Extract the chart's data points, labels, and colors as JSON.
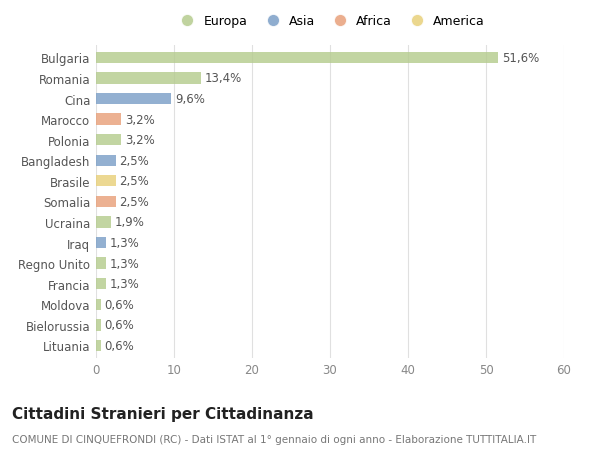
{
  "countries": [
    "Bulgaria",
    "Romania",
    "Cina",
    "Marocco",
    "Polonia",
    "Bangladesh",
    "Brasile",
    "Somalia",
    "Ucraina",
    "Iraq",
    "Regno Unito",
    "Francia",
    "Moldova",
    "Bielorussia",
    "Lituania"
  ],
  "values": [
    51.6,
    13.4,
    9.6,
    3.2,
    3.2,
    2.5,
    2.5,
    2.5,
    1.9,
    1.3,
    1.3,
    1.3,
    0.6,
    0.6,
    0.6
  ],
  "labels": [
    "51,6%",
    "13,4%",
    "9,6%",
    "3,2%",
    "3,2%",
    "2,5%",
    "2,5%",
    "2,5%",
    "1,9%",
    "1,3%",
    "1,3%",
    "1,3%",
    "0,6%",
    "0,6%",
    "0,6%"
  ],
  "continents": [
    "Europa",
    "Europa",
    "Asia",
    "Africa",
    "Europa",
    "Asia",
    "America",
    "Africa",
    "Europa",
    "Asia",
    "Europa",
    "Europa",
    "Europa",
    "Europa",
    "Europa"
  ],
  "colors": {
    "Europa": "#b5cc8e",
    "Asia": "#7b9fc7",
    "Africa": "#e8a07a",
    "America": "#e8d07a"
  },
  "xlim": [
    0,
    60
  ],
  "xticks": [
    0,
    10,
    20,
    30,
    40,
    50,
    60
  ],
  "title": "Cittadini Stranieri per Cittadinanza",
  "subtitle": "COMUNE DI CINQUEFRONDI (RC) - Dati ISTAT al 1° gennaio di ogni anno - Elaborazione TUTTITALIA.IT",
  "bg_color": "#ffffff",
  "grid_color": "#e0e0e0",
  "bar_height": 0.55,
  "label_fontsize": 8.5,
  "ytick_fontsize": 8.5,
  "xtick_fontsize": 8.5,
  "title_fontsize": 11,
  "subtitle_fontsize": 7.5
}
